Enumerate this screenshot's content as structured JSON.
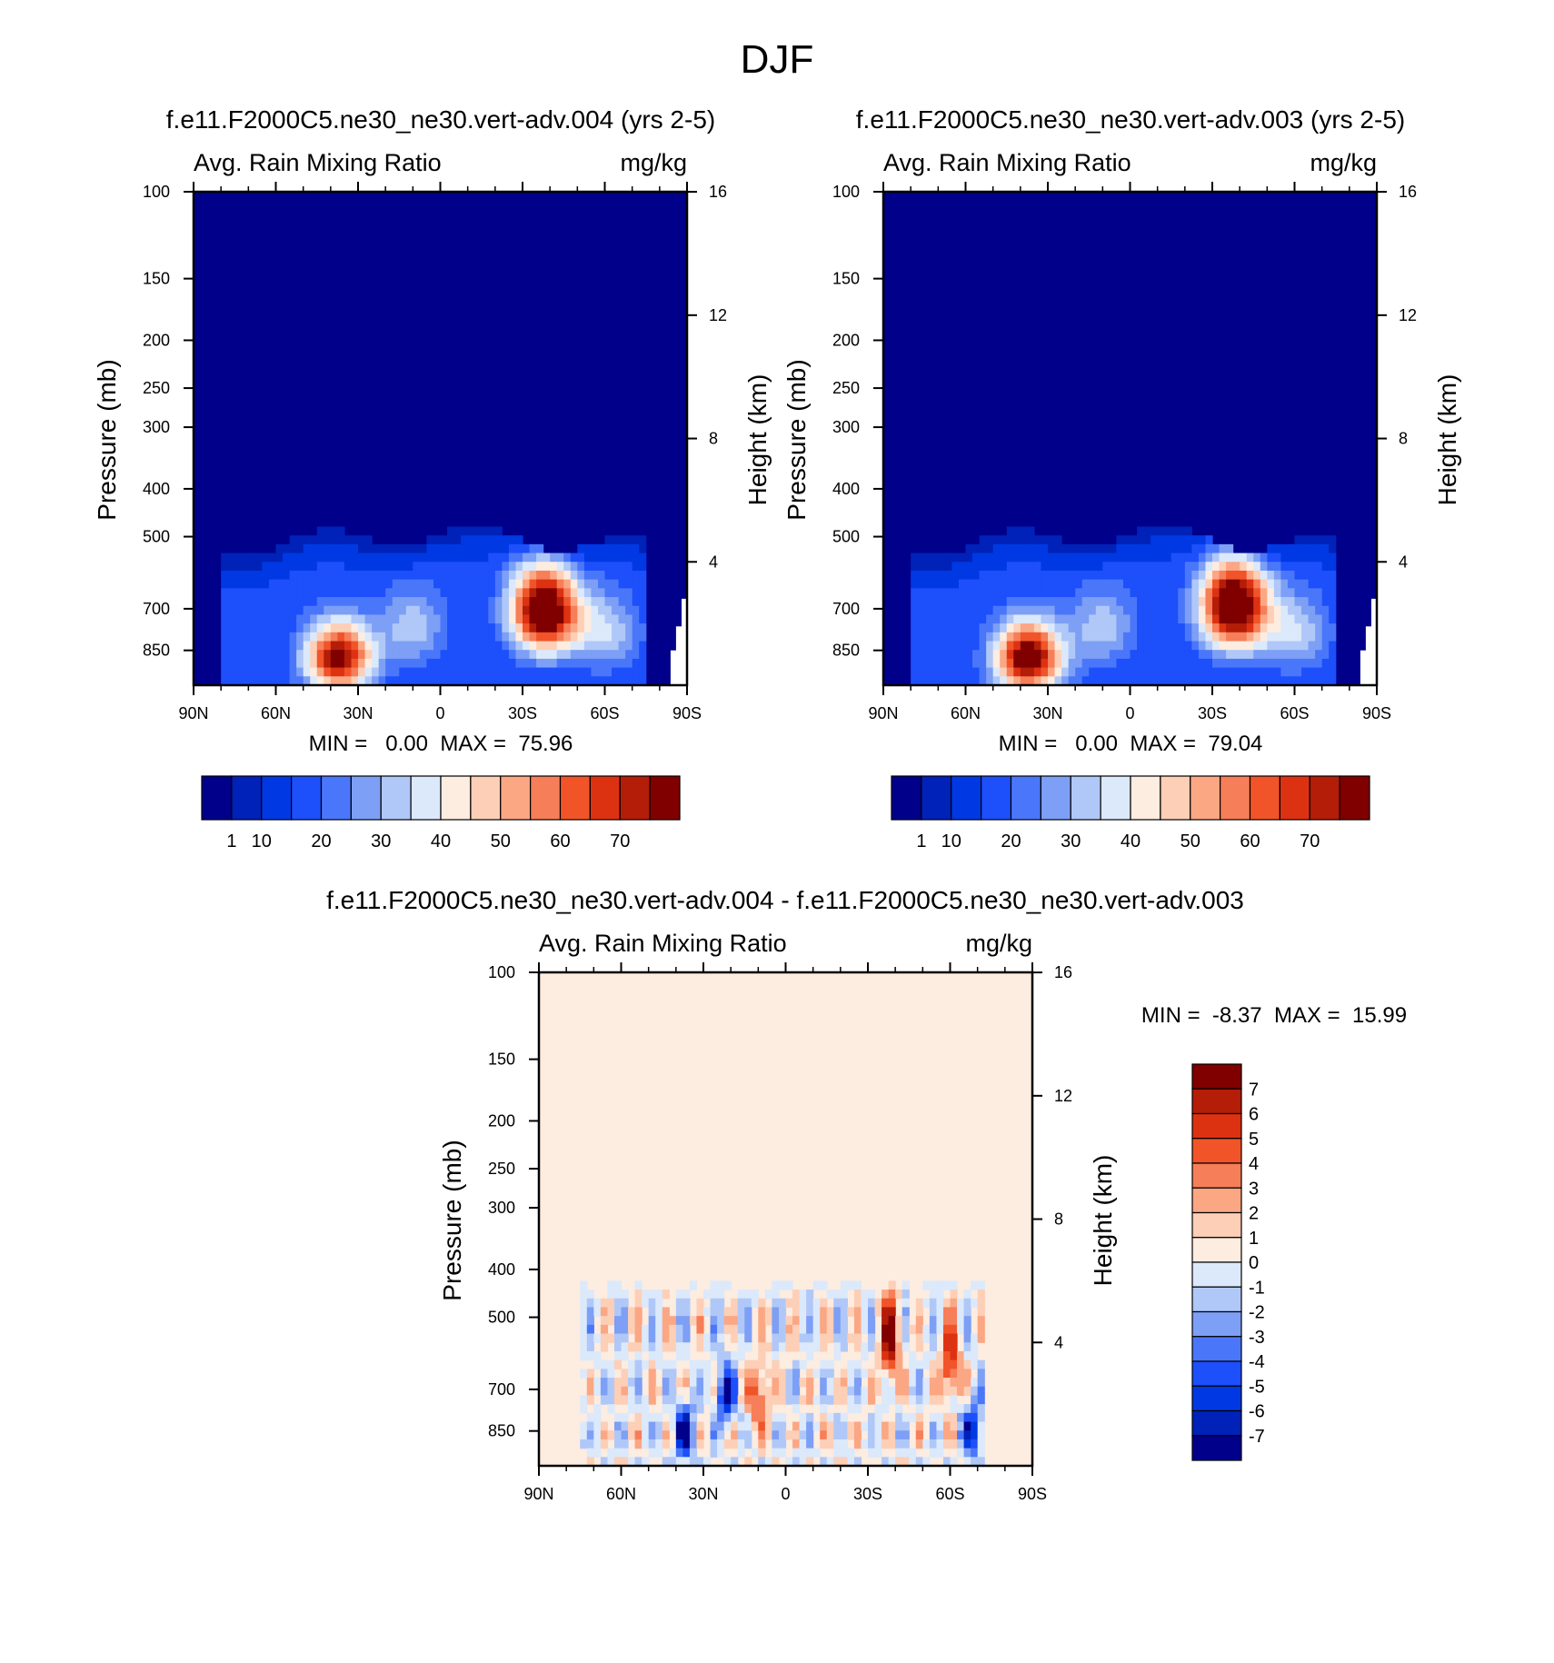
{
  "figure_title": "DJF",
  "chart_data": [
    {
      "type": "heatmap",
      "title": "f.e11.F2000C5.ne30_ne30.vert-adv.004 (yrs 2-5)",
      "left_subtitle": "Avg. Rain Mixing Ratio",
      "right_subtitle": "mg/kg",
      "xlabel": "",
      "ylabel": "Pressure (mb)",
      "y2label": "Height (km)",
      "xticks": [
        "90N",
        "60N",
        "30N",
        "0",
        "30S",
        "60S",
        "90S"
      ],
      "xtick_values": [
        90,
        60,
        30,
        0,
        -30,
        -60,
        -90
      ],
      "yticks": [
        100,
        150,
        200,
        250,
        300,
        400,
        500,
        700,
        850
      ],
      "y2ticks": [
        16,
        12,
        8,
        4
      ],
      "ylim": [
        100,
        1000
      ],
      "stats": "MIN =   0.00  MAX =  75.96",
      "min": 0.0,
      "max": 75.96,
      "colorbar_orientation": "horizontal",
      "colorbar_labels": [
        "1",
        "10",
        "20",
        "30",
        "40",
        "50",
        "60",
        "70"
      ],
      "levels": [
        1,
        5,
        10,
        15,
        20,
        25,
        30,
        35,
        40,
        45,
        50,
        55,
        60,
        65,
        70
      ],
      "colors": [
        "#00008b",
        "#0022b8",
        "#0039e3",
        "#1d4ffa",
        "#4a77fa",
        "#7d9ff5",
        "#b0c8f8",
        "#dbe9fb",
        "#fdece0",
        "#fdcfb6",
        "#fba784",
        "#f67e58",
        "#f15428",
        "#dd3212",
        "#b41d08",
        "#800000"
      ],
      "background_color": "#00008b",
      "features": [
        {
          "lat": 37,
          "p": 880,
          "value": 64
        },
        {
          "lat": -38,
          "p": 705,
          "value": 76
        },
        {
          "lat": 10,
          "p": 760,
          "value": 18
        },
        {
          "lat": -60,
          "p": 780,
          "value": 20
        }
      ]
    },
    {
      "type": "heatmap",
      "title": "f.e11.F2000C5.ne30_ne30.vert-adv.003 (yrs 2-5)",
      "left_subtitle": "Avg. Rain Mixing Ratio",
      "right_subtitle": "mg/kg",
      "xlabel": "",
      "ylabel": "Pressure (mb)",
      "y2label": "Height (km)",
      "xticks": [
        "90N",
        "60N",
        "30N",
        "0",
        "30S",
        "60S",
        "90S"
      ],
      "xtick_values": [
        90,
        60,
        30,
        0,
        -30,
        -60,
        -90
      ],
      "yticks": [
        100,
        150,
        200,
        250,
        300,
        400,
        500,
        700,
        850
      ],
      "y2ticks": [
        16,
        12,
        8,
        4
      ],
      "ylim": [
        100,
        1000
      ],
      "stats": "MIN =   0.00  MAX =  79.04",
      "min": 0.0,
      "max": 79.04,
      "colorbar_orientation": "horizontal",
      "colorbar_labels": [
        "1",
        "10",
        "20",
        "30",
        "40",
        "50",
        "60",
        "70"
      ],
      "levels": [
        1,
        5,
        10,
        15,
        20,
        25,
        30,
        35,
        40,
        45,
        50,
        55,
        60,
        65,
        70
      ],
      "colors": [
        "#00008b",
        "#0022b8",
        "#0039e3",
        "#1d4ffa",
        "#4a77fa",
        "#7d9ff5",
        "#b0c8f8",
        "#dbe9fb",
        "#fdece0",
        "#fdcfb6",
        "#fba784",
        "#f67e58",
        "#f15428",
        "#dd3212",
        "#b41d08",
        "#800000"
      ],
      "background_color": "#00008b",
      "features": [
        {
          "lat": 37,
          "p": 880,
          "value": 70
        },
        {
          "lat": -38,
          "p": 690,
          "value": 79
        },
        {
          "lat": 10,
          "p": 760,
          "value": 18
        },
        {
          "lat": -60,
          "p": 780,
          "value": 20
        }
      ]
    },
    {
      "type": "heatmap",
      "title": "f.e11.F2000C5.ne30_ne30.vert-adv.004 - f.e11.F2000C5.ne30_ne30.vert-adv.003",
      "left_subtitle": "Avg. Rain Mixing Ratio",
      "right_subtitle": "mg/kg",
      "xlabel": "",
      "ylabel": "Pressure (mb)",
      "y2label": "Height (km)",
      "xticks": [
        "90N",
        "60N",
        "30N",
        "0",
        "30S",
        "60S",
        "90S"
      ],
      "xtick_values": [
        90,
        60,
        30,
        0,
        -30,
        -60,
        -90
      ],
      "yticks": [
        100,
        150,
        200,
        250,
        300,
        400,
        500,
        700,
        850
      ],
      "y2ticks": [
        16,
        12,
        8,
        4
      ],
      "ylim": [
        100,
        1000
      ],
      "stats": "MIN =  -8.37  MAX =  15.99",
      "min": -8.37,
      "max": 15.99,
      "colorbar_orientation": "vertical",
      "colorbar_labels": [
        "7",
        "6",
        "5",
        "4",
        "3",
        "2",
        "1",
        "0",
        "-1",
        "-2",
        "-3",
        "-4",
        "-5",
        "-6",
        "-7"
      ],
      "levels": [
        -7,
        -6,
        -5,
        -4,
        -3,
        -2,
        -1,
        0,
        1,
        2,
        3,
        4,
        5,
        6,
        7
      ],
      "colors": [
        "#00008b",
        "#0022b8",
        "#0039e3",
        "#1d4ffa",
        "#4a77fa",
        "#7d9ff5",
        "#b0c8f8",
        "#dbe9fb",
        "#fdece0",
        "#fdcfb6",
        "#fba784",
        "#f67e58",
        "#f15428",
        "#dd3212",
        "#b41d08",
        "#800000"
      ],
      "background_color": "#fdece0",
      "features": [
        {
          "lat": 37,
          "p": 860,
          "value": -7.5
        },
        {
          "lat": 22,
          "p": 720,
          "value": -6
        },
        {
          "lat": 10,
          "p": 720,
          "value": 5
        },
        {
          "lat": -38,
          "p": 560,
          "value": 7.5
        },
        {
          "lat": -60,
          "p": 620,
          "value": 6
        },
        {
          "lat": -68,
          "p": 850,
          "value": -6
        }
      ]
    }
  ]
}
